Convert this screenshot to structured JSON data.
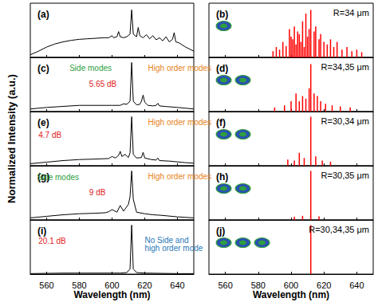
{
  "chart_data": [
    {
      "type": "line",
      "title": "(a)",
      "color": "#000000",
      "x": [
        550,
        555,
        560,
        565,
        570,
        575,
        580,
        585,
        590,
        595,
        598,
        600,
        601,
        603,
        604,
        605,
        607,
        609,
        611,
        612,
        613,
        615,
        616,
        617,
        619,
        621,
        623,
        625,
        627,
        629,
        631,
        633,
        635,
        637,
        638,
        639,
        641,
        645,
        650
      ],
      "values": [
        0.05,
        0.12,
        0.2,
        0.26,
        0.3,
        0.33,
        0.35,
        0.36,
        0.37,
        0.38,
        0.38,
        0.42,
        0.38,
        0.4,
        0.5,
        0.4,
        0.38,
        0.4,
        0.45,
        0.92,
        0.45,
        0.4,
        0.58,
        0.42,
        0.38,
        0.44,
        0.36,
        0.42,
        0.34,
        0.38,
        0.32,
        0.4,
        0.3,
        0.35,
        0.48,
        0.3,
        0.28,
        0.2,
        0.12
      ],
      "xlim": [
        550,
        650
      ],
      "xticks": [
        560,
        580,
        600,
        620,
        640
      ],
      "ylim": [
        0,
        1.05
      ],
      "tick_labels": false,
      "annotations": []
    },
    {
      "type": "bar",
      "title": "(b)",
      "color": "#ff0000",
      "x": [
        589,
        591,
        593,
        595,
        597,
        599,
        600,
        601,
        602,
        603,
        604,
        605,
        606,
        607,
        608,
        609,
        610,
        611,
        612,
        614,
        615,
        617,
        618,
        620,
        622,
        624,
        626,
        628,
        631,
        634,
        637,
        640,
        643
      ],
      "values": [
        0.12,
        0.2,
        0.15,
        0.3,
        0.22,
        0.55,
        0.4,
        0.35,
        0.6,
        0.25,
        0.5,
        0.45,
        0.3,
        0.7,
        0.2,
        0.85,
        0.4,
        0.55,
        0.92,
        0.5,
        0.6,
        0.35,
        0.45,
        0.3,
        0.25,
        0.35,
        0.2,
        0.3,
        0.15,
        0.2,
        0.12,
        0.15,
        0.1
      ],
      "xlim": [
        550,
        650
      ],
      "xticks": [
        560,
        580,
        600,
        620,
        640
      ],
      "ylim": [
        0,
        1.05
      ],
      "tick_labels": false,
      "annotations": [
        "R=34 μm"
      ]
    },
    {
      "type": "line",
      "title": "(c)",
      "color": "#000000",
      "x": [
        550,
        560,
        570,
        580,
        590,
        600,
        605,
        607,
        609,
        611,
        612,
        613,
        615,
        617,
        618,
        619,
        620,
        622,
        625,
        627,
        628,
        629,
        632,
        640,
        650
      ],
      "values": [
        0.05,
        0.08,
        0.1,
        0.12,
        0.12,
        0.12,
        0.12,
        0.15,
        0.14,
        0.2,
        0.95,
        0.2,
        0.13,
        0.14,
        0.2,
        0.32,
        0.18,
        0.12,
        0.11,
        0.12,
        0.16,
        0.11,
        0.1,
        0.08,
        0.05
      ],
      "xlim": [
        550,
        650
      ],
      "xticks": [
        560,
        580,
        600,
        620,
        640
      ],
      "ylim": [
        0,
        1.05
      ],
      "tick_labels": false,
      "annotations": [
        "Side modes",
        "5.65 dB",
        "High order modes"
      ]
    },
    {
      "type": "bar",
      "title": "(d)",
      "color": "#ff0000",
      "x": [
        590,
        596,
        600,
        603,
        605,
        607,
        609,
        611,
        612,
        614,
        616,
        618,
        621,
        625,
        630,
        636
      ],
      "values": [
        0.08,
        0.12,
        0.2,
        0.35,
        0.2,
        0.3,
        0.25,
        0.45,
        0.92,
        0.35,
        0.3,
        0.2,
        0.15,
        0.12,
        0.1,
        0.08
      ],
      "xlim": [
        550,
        650
      ],
      "xticks": [
        560,
        580,
        600,
        620,
        640
      ],
      "ylim": [
        0,
        1.05
      ],
      "tick_labels": false,
      "annotations": [
        "R=34,35 μm"
      ]
    },
    {
      "type": "line",
      "title": "(e)",
      "color": "#000000",
      "ylabel": "Normalized Intensity (a.u.)",
      "x": [
        550,
        560,
        570,
        580,
        590,
        598,
        600,
        602,
        604,
        605,
        606,
        608,
        610,
        611,
        612,
        613,
        615,
        618,
        619,
        620,
        624,
        627,
        628,
        629,
        635,
        645,
        650
      ],
      "values": [
        0.04,
        0.07,
        0.1,
        0.12,
        0.13,
        0.14,
        0.18,
        0.15,
        0.2,
        0.28,
        0.18,
        0.22,
        0.16,
        0.25,
        0.95,
        0.22,
        0.15,
        0.16,
        0.26,
        0.15,
        0.12,
        0.11,
        0.15,
        0.1,
        0.09,
        0.06,
        0.05
      ],
      "xlim": [
        550,
        650
      ],
      "xticks": [
        560,
        580,
        600,
        620,
        640
      ],
      "ylim": [
        0,
        1.05
      ],
      "tick_labels": false,
      "annotations": [
        "4.7 dB",
        "High order modes"
      ]
    },
    {
      "type": "bar",
      "title": "(f)",
      "color": "#ff0000",
      "x": [
        598,
        602,
        605,
        608,
        612,
        615,
        619,
        624
      ],
      "values": [
        0.12,
        0.1,
        0.25,
        0.15,
        0.95,
        0.18,
        0.1,
        0.08
      ],
      "xlim": [
        550,
        650
      ],
      "xticks": [
        560,
        580,
        600,
        620,
        640
      ],
      "ylim": [
        0,
        1.05
      ],
      "tick_labels": false,
      "annotations": [
        "R=30,34 μm"
      ]
    },
    {
      "type": "line",
      "title": "(g)",
      "color": "#000000",
      "x": [
        550,
        560,
        570,
        580,
        590,
        596,
        598,
        600,
        603,
        605,
        607,
        610,
        611,
        612,
        613,
        615,
        620,
        625,
        630,
        640,
        650
      ],
      "values": [
        0.04,
        0.07,
        0.1,
        0.12,
        0.13,
        0.14,
        0.16,
        0.2,
        0.15,
        0.28,
        0.17,
        0.3,
        0.45,
        0.95,
        0.4,
        0.15,
        0.12,
        0.1,
        0.09,
        0.06,
        0.04
      ],
      "xlim": [
        550,
        650
      ],
      "xticks": [
        560,
        580,
        600,
        620,
        640
      ],
      "ylim": [
        0,
        1.05
      ],
      "tick_labels": false,
      "annotations": [
        "Side modes",
        "9 dB",
        "High order modes"
      ]
    },
    {
      "type": "bar",
      "title": "(h)",
      "color": "#ff0000",
      "x": [
        602,
        607,
        612,
        617
      ],
      "values": [
        0.06,
        0.08,
        0.95,
        0.07
      ],
      "xlim": [
        550,
        650
      ],
      "xticks": [
        560,
        580,
        600,
        620,
        640
      ],
      "ylim": [
        0,
        1.05
      ],
      "tick_labels": false,
      "annotations": [
        "R=30,35 μm"
      ]
    },
    {
      "type": "line",
      "title": "(i)",
      "color": "#000000",
      "xlabel": "Wavelength (nm)",
      "x": [
        550,
        570,
        590,
        605,
        609,
        611,
        612,
        613,
        615,
        620,
        640,
        650
      ],
      "values": [
        0.01,
        0.02,
        0.02,
        0.02,
        0.03,
        0.1,
        0.95,
        0.1,
        0.03,
        0.02,
        0.01,
        0.01
      ],
      "xlim": [
        550,
        650
      ],
      "xticks": [
        560,
        580,
        600,
        620,
        640
      ],
      "ylim": [
        0,
        1.05
      ],
      "tick_labels": "x",
      "annotations": [
        "20.1 dB",
        "No Side and\nhigh order mode"
      ]
    },
    {
      "type": "bar",
      "title": "(j)",
      "color": "#ff0000",
      "xlabel": "Wavelength (nm)",
      "x": [
        612
      ],
      "values": [
        0.95
      ],
      "xlim": [
        550,
        650
      ],
      "xticks": [
        560,
        580,
        600,
        620,
        640
      ],
      "ylim": [
        0,
        1.05
      ],
      "tick_labels": "x",
      "annotations": [
        "R=30,34,35 μm"
      ]
    }
  ]
}
